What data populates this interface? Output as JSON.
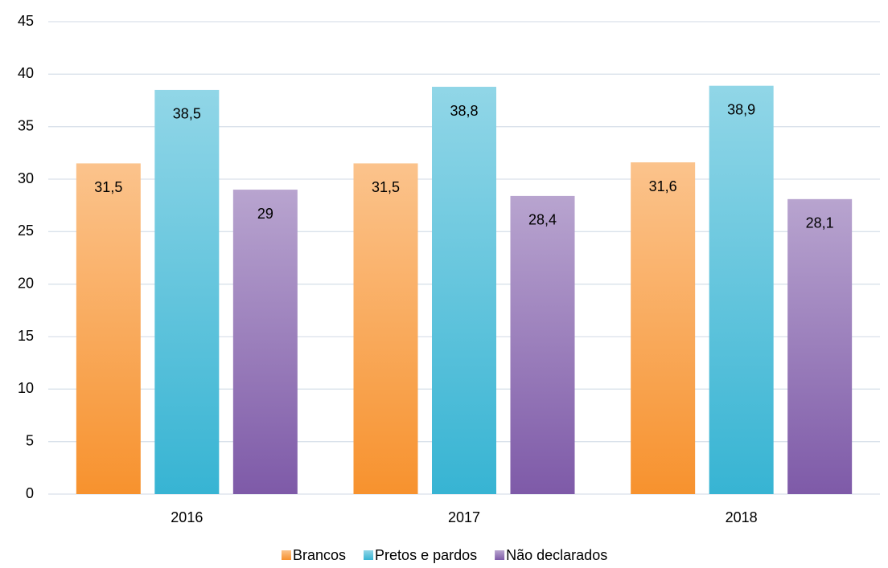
{
  "chart_data": {
    "type": "bar",
    "categories": [
      "2016",
      "2017",
      "2018"
    ],
    "series": [
      {
        "name": "Brancos",
        "color": "#f7922e",
        "values": [
          31.5,
          31.5,
          31.6
        ],
        "value_labels": [
          "31,5",
          "31,5",
          "31,6"
        ]
      },
      {
        "name": "Pretos e pardos",
        "color": "#37b4d3",
        "values": [
          38.5,
          38.8,
          38.9
        ],
        "value_labels": [
          "38,5",
          "38,8",
          "38,9"
        ]
      },
      {
        "name": "Não declarados",
        "color": "#7e5aa8",
        "values": [
          29,
          28.4,
          28.1
        ],
        "value_labels": [
          "29",
          "28,4",
          "28,1"
        ]
      }
    ],
    "ylim": [
      0,
      45
    ],
    "yticks": [
      0,
      5,
      10,
      15,
      20,
      25,
      30,
      35,
      40,
      45
    ],
    "grid": true,
    "legend": "bottom"
  }
}
